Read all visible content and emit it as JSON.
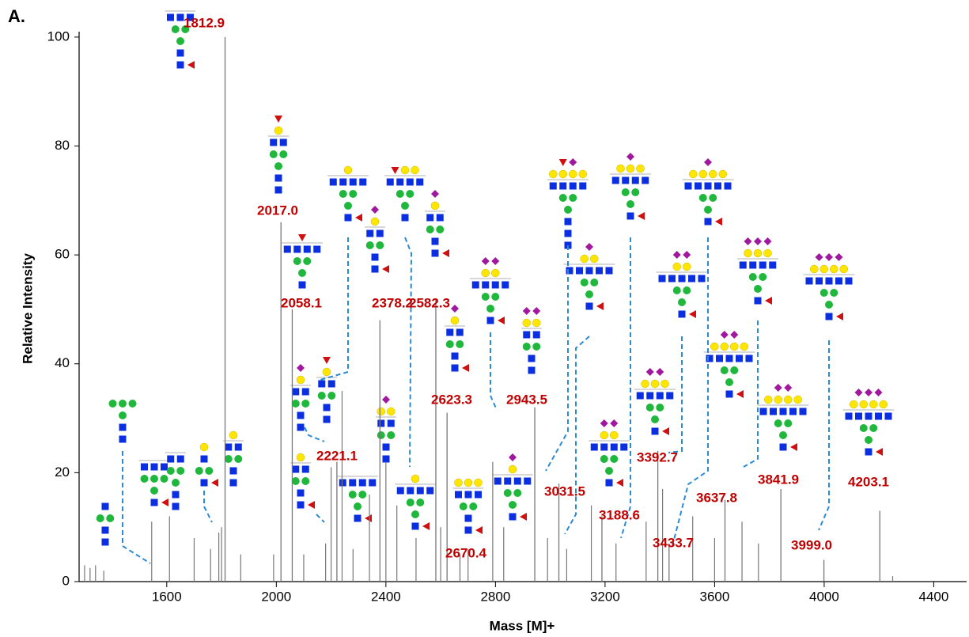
{
  "chart_data": {
    "type": "spectrum",
    "panel_label": "A.",
    "x_label": "Mass [M]+",
    "y_label": "Relative Intensity",
    "xlim": [
      1280,
      4520
    ],
    "ylim": [
      0,
      101
    ],
    "xticks": [
      1600,
      2000,
      2400,
      2800,
      3200,
      3600,
      4000,
      4400
    ],
    "yticks": [
      0,
      20,
      40,
      60,
      80,
      100
    ],
    "color": "#777777",
    "label_color": "#c00000",
    "peaks": {
      "x": [
        1812.9,
        2017.0,
        2058.1,
        2221.1,
        2378.2,
        2582.3,
        2623.3,
        2670.4,
        2943.5,
        3031.5,
        3188.6,
        3392.7,
        3433.7,
        3637.8,
        3841.9,
        3999.0,
        4203.1
      ],
      "values": [
        100,
        66,
        50,
        22,
        48,
        52,
        31,
        5,
        32,
        18,
        12,
        24,
        7,
        15,
        17,
        4,
        13
      ],
      "labels": [
        "1812.9",
        "2017.0",
        "2058.1",
        "2221.1",
        "2378.2",
        "2582.3",
        "2623.3",
        "2670.4",
        "2943.5",
        "3031.5",
        "3188.6",
        "3392.7",
        "3433.7",
        "3637.8",
        "3841.9",
        "3999.0",
        "4203.1"
      ]
    },
    "minor_peaks": {
      "x": [
        1300,
        1320,
        1340,
        1370,
        1545,
        1610,
        1700,
        1760,
        1790,
        1800,
        1870,
        1990,
        2100,
        2180,
        2200,
        2240,
        2280,
        2340,
        2400,
        2440,
        2510,
        2600,
        2700,
        2790,
        2830,
        2990,
        3060,
        3150,
        3240,
        3350,
        3410,
        3520,
        3600,
        3700,
        3760,
        4250
      ],
      "values": [
        3,
        2.5,
        3,
        2,
        11,
        12,
        8,
        6,
        9,
        10,
        5,
        5,
        5,
        7,
        21,
        35,
        6,
        16,
        22,
        14,
        8,
        10,
        6,
        22,
        10,
        8,
        6,
        14,
        7,
        11,
        17,
        12,
        8,
        11,
        7,
        1
      ]
    }
  }
}
